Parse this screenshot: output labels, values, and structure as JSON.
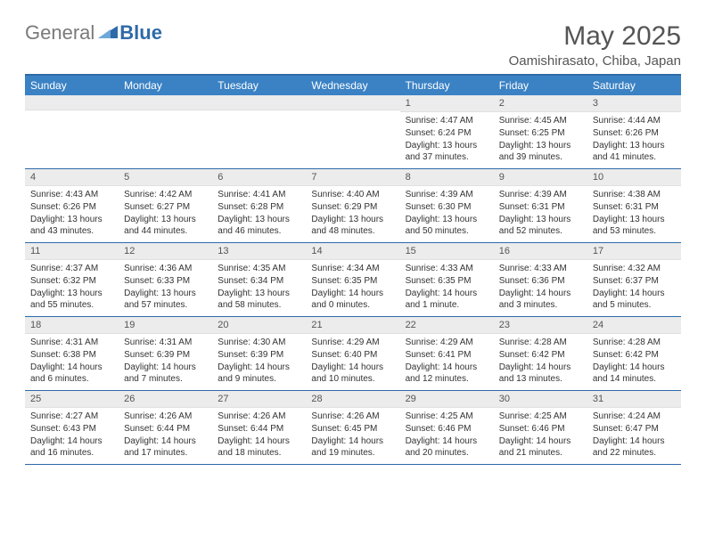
{
  "logo": {
    "general": "General",
    "blue": "Blue"
  },
  "header": {
    "title": "May 2025",
    "location": "Oamishirasato, Chiba, Japan"
  },
  "colors": {
    "header_bg": "#3b82c4",
    "border": "#2f6aa8",
    "daynum_bg": "#ececec",
    "text": "#333333"
  },
  "dayNames": [
    "Sunday",
    "Monday",
    "Tuesday",
    "Wednesday",
    "Thursday",
    "Friday",
    "Saturday"
  ],
  "weeks": [
    [
      {
        "n": "",
        "sr": "",
        "ss": "",
        "dl": ""
      },
      {
        "n": "",
        "sr": "",
        "ss": "",
        "dl": ""
      },
      {
        "n": "",
        "sr": "",
        "ss": "",
        "dl": ""
      },
      {
        "n": "",
        "sr": "",
        "ss": "",
        "dl": ""
      },
      {
        "n": "1",
        "sr": "Sunrise: 4:47 AM",
        "ss": "Sunset: 6:24 PM",
        "dl": "Daylight: 13 hours and 37 minutes."
      },
      {
        "n": "2",
        "sr": "Sunrise: 4:45 AM",
        "ss": "Sunset: 6:25 PM",
        "dl": "Daylight: 13 hours and 39 minutes."
      },
      {
        "n": "3",
        "sr": "Sunrise: 4:44 AM",
        "ss": "Sunset: 6:26 PM",
        "dl": "Daylight: 13 hours and 41 minutes."
      }
    ],
    [
      {
        "n": "4",
        "sr": "Sunrise: 4:43 AM",
        "ss": "Sunset: 6:26 PM",
        "dl": "Daylight: 13 hours and 43 minutes."
      },
      {
        "n": "5",
        "sr": "Sunrise: 4:42 AM",
        "ss": "Sunset: 6:27 PM",
        "dl": "Daylight: 13 hours and 44 minutes."
      },
      {
        "n": "6",
        "sr": "Sunrise: 4:41 AM",
        "ss": "Sunset: 6:28 PM",
        "dl": "Daylight: 13 hours and 46 minutes."
      },
      {
        "n": "7",
        "sr": "Sunrise: 4:40 AM",
        "ss": "Sunset: 6:29 PM",
        "dl": "Daylight: 13 hours and 48 minutes."
      },
      {
        "n": "8",
        "sr": "Sunrise: 4:39 AM",
        "ss": "Sunset: 6:30 PM",
        "dl": "Daylight: 13 hours and 50 minutes."
      },
      {
        "n": "9",
        "sr": "Sunrise: 4:39 AM",
        "ss": "Sunset: 6:31 PM",
        "dl": "Daylight: 13 hours and 52 minutes."
      },
      {
        "n": "10",
        "sr": "Sunrise: 4:38 AM",
        "ss": "Sunset: 6:31 PM",
        "dl": "Daylight: 13 hours and 53 minutes."
      }
    ],
    [
      {
        "n": "11",
        "sr": "Sunrise: 4:37 AM",
        "ss": "Sunset: 6:32 PM",
        "dl": "Daylight: 13 hours and 55 minutes."
      },
      {
        "n": "12",
        "sr": "Sunrise: 4:36 AM",
        "ss": "Sunset: 6:33 PM",
        "dl": "Daylight: 13 hours and 57 minutes."
      },
      {
        "n": "13",
        "sr": "Sunrise: 4:35 AM",
        "ss": "Sunset: 6:34 PM",
        "dl": "Daylight: 13 hours and 58 minutes."
      },
      {
        "n": "14",
        "sr": "Sunrise: 4:34 AM",
        "ss": "Sunset: 6:35 PM",
        "dl": "Daylight: 14 hours and 0 minutes."
      },
      {
        "n": "15",
        "sr": "Sunrise: 4:33 AM",
        "ss": "Sunset: 6:35 PM",
        "dl": "Daylight: 14 hours and 1 minute."
      },
      {
        "n": "16",
        "sr": "Sunrise: 4:33 AM",
        "ss": "Sunset: 6:36 PM",
        "dl": "Daylight: 14 hours and 3 minutes."
      },
      {
        "n": "17",
        "sr": "Sunrise: 4:32 AM",
        "ss": "Sunset: 6:37 PM",
        "dl": "Daylight: 14 hours and 5 minutes."
      }
    ],
    [
      {
        "n": "18",
        "sr": "Sunrise: 4:31 AM",
        "ss": "Sunset: 6:38 PM",
        "dl": "Daylight: 14 hours and 6 minutes."
      },
      {
        "n": "19",
        "sr": "Sunrise: 4:31 AM",
        "ss": "Sunset: 6:39 PM",
        "dl": "Daylight: 14 hours and 7 minutes."
      },
      {
        "n": "20",
        "sr": "Sunrise: 4:30 AM",
        "ss": "Sunset: 6:39 PM",
        "dl": "Daylight: 14 hours and 9 minutes."
      },
      {
        "n": "21",
        "sr": "Sunrise: 4:29 AM",
        "ss": "Sunset: 6:40 PM",
        "dl": "Daylight: 14 hours and 10 minutes."
      },
      {
        "n": "22",
        "sr": "Sunrise: 4:29 AM",
        "ss": "Sunset: 6:41 PM",
        "dl": "Daylight: 14 hours and 12 minutes."
      },
      {
        "n": "23",
        "sr": "Sunrise: 4:28 AM",
        "ss": "Sunset: 6:42 PM",
        "dl": "Daylight: 14 hours and 13 minutes."
      },
      {
        "n": "24",
        "sr": "Sunrise: 4:28 AM",
        "ss": "Sunset: 6:42 PM",
        "dl": "Daylight: 14 hours and 14 minutes."
      }
    ],
    [
      {
        "n": "25",
        "sr": "Sunrise: 4:27 AM",
        "ss": "Sunset: 6:43 PM",
        "dl": "Daylight: 14 hours and 16 minutes."
      },
      {
        "n": "26",
        "sr": "Sunrise: 4:26 AM",
        "ss": "Sunset: 6:44 PM",
        "dl": "Daylight: 14 hours and 17 minutes."
      },
      {
        "n": "27",
        "sr": "Sunrise: 4:26 AM",
        "ss": "Sunset: 6:44 PM",
        "dl": "Daylight: 14 hours and 18 minutes."
      },
      {
        "n": "28",
        "sr": "Sunrise: 4:26 AM",
        "ss": "Sunset: 6:45 PM",
        "dl": "Daylight: 14 hours and 19 minutes."
      },
      {
        "n": "29",
        "sr": "Sunrise: 4:25 AM",
        "ss": "Sunset: 6:46 PM",
        "dl": "Daylight: 14 hours and 20 minutes."
      },
      {
        "n": "30",
        "sr": "Sunrise: 4:25 AM",
        "ss": "Sunset: 6:46 PM",
        "dl": "Daylight: 14 hours and 21 minutes."
      },
      {
        "n": "31",
        "sr": "Sunrise: 4:24 AM",
        "ss": "Sunset: 6:47 PM",
        "dl": "Daylight: 14 hours and 22 minutes."
      }
    ]
  ]
}
